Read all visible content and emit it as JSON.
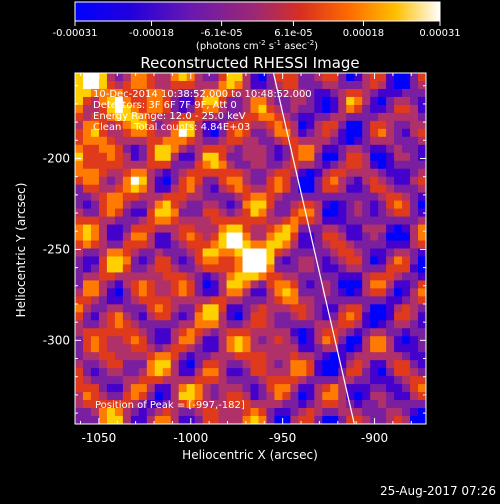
{
  "colorbar": {
    "ticks": [
      "-0.00031",
      "-0.00018",
      "-6.1e-05",
      "6.1e-05",
      "0.00018",
      "0.00031"
    ],
    "tick_values": [
      -0.00031,
      -0.00018,
      -6.1e-05,
      6.1e-05,
      0.00018,
      0.00031
    ],
    "range": [
      -0.00031,
      0.00031
    ],
    "units": "(photons cm",
    "units_exp1": "-2",
    "units_mid": " s",
    "units_exp2": "-1",
    "units_mid2": " asec",
    "units_exp3": "-2",
    "units_end": ")"
  },
  "chart_data": {
    "type": "heatmap",
    "title": "Reconstructed RHESSI Image",
    "xlabel": "Heliocentric X (arcsec)",
    "ylabel": "Heliocentric Y (arcsec)",
    "xlim": [
      -1063,
      -872
    ],
    "ylim": [
      -346,
      -153
    ],
    "xticks": [
      -1050,
      -1000,
      -950,
      -900
    ],
    "yticks": [
      -300,
      -250,
      -200
    ],
    "colormap": [
      "#0000ff",
      "#4400cc",
      "#7a1fa0",
      "#b0306a",
      "#e03a1c",
      "#ff7a00",
      "#ffd000",
      "#ffffff"
    ],
    "peak": {
      "x": -997,
      "y": -182
    },
    "limb_line": {
      "x1": -955,
      "y1": -153,
      "x2": -911,
      "y2": -346
    },
    "annotations": [
      "10-Dec-2014 10:38:52.000 to 10:48:52.000",
      "Detectors: 3F 6F 7F 9F, Att 0",
      "Energy Range: 12.0 - 25.0 keV",
      "Clean    Total counts: 4.84E+03"
    ],
    "peak_label": "Position of Peak = [-997,-182]"
  },
  "footer": {
    "timestamp": "25-Aug-2017 07:26"
  }
}
